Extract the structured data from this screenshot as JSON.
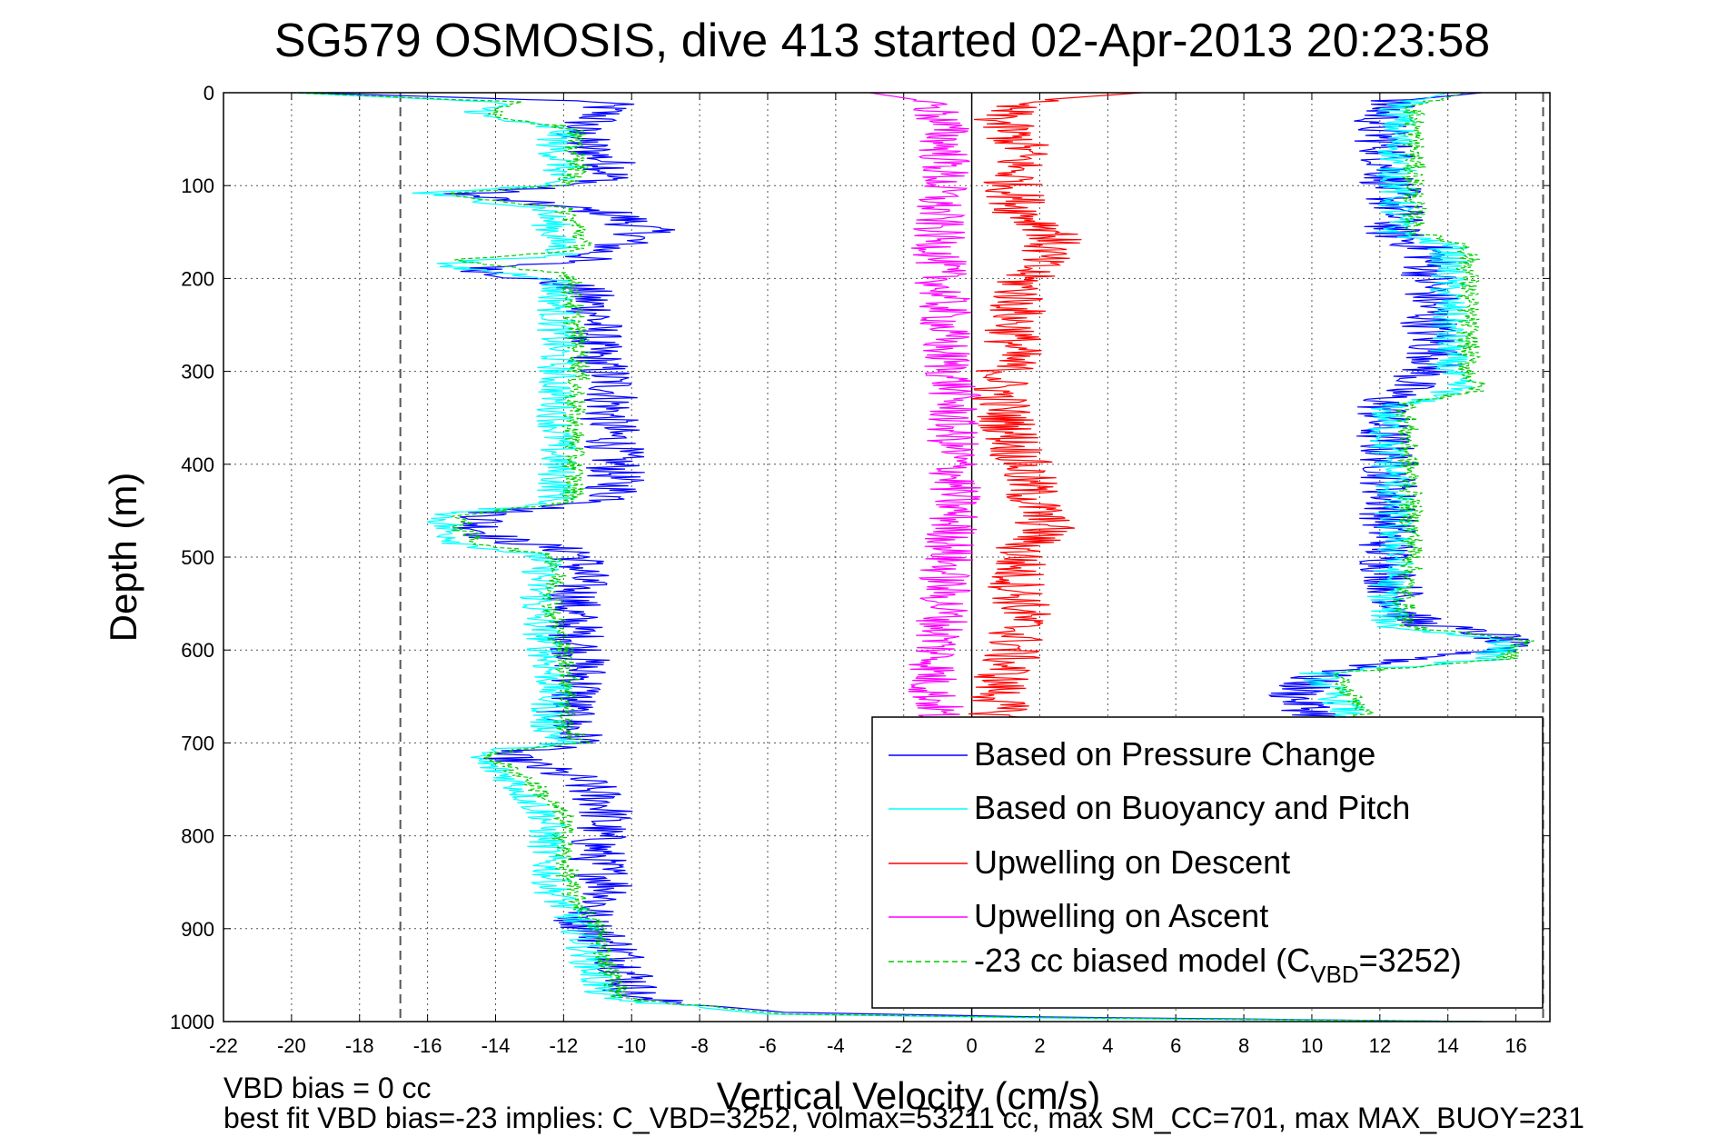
{
  "chart_data": {
    "type": "line",
    "title": "SG579 OSMOSIS, dive 413 started 02-Apr-2013 20:23:58",
    "xlabel": "Vertical Velocity (cm/s)",
    "ylabel": "Depth (m)",
    "xlim": [
      -22,
      17
    ],
    "ylim": [
      0,
      1000
    ],
    "y_reversed": true,
    "grid": true,
    "xticks": [
      -22,
      -20,
      -18,
      -16,
      -14,
      -12,
      -10,
      -8,
      -6,
      -4,
      -2,
      0,
      2,
      4,
      6,
      8,
      10,
      12,
      14,
      16
    ],
    "yticks": [
      0,
      100,
      200,
      300,
      400,
      500,
      600,
      700,
      800,
      900,
      1000
    ],
    "reference_lines": {
      "dashed_x": [
        -16.8,
        16.8
      ],
      "solid_x": [
        0
      ]
    },
    "legend_position": "lower-right",
    "series": [
      {
        "name": "Based on Pressure Change",
        "color": "#0000ff",
        "style": "solid",
        "segments": [
          {
            "depth": [
              0,
              10,
              25,
              40,
              60,
              80,
              95,
              110,
              130,
              150,
              165,
              180,
              190,
              210,
              240,
              270,
              290,
              320,
              350,
              380,
              410,
              440,
              452,
              465,
              480,
              495,
              520,
              560,
              600,
              640,
              670,
              700,
              712,
              740,
              770,
              800,
              830,
              860,
              890,
              920,
              950,
              975,
              990,
              995,
              1000
            ],
            "velocity": [
              -19.5,
              -10.8,
              -10.9,
              -11.7,
              -11.3,
              -10.5,
              -10.8,
              -15,
              -10.5,
              -9.5,
              -10.5,
              -11.5,
              -14.5,
              -11.5,
              -11,
              -11.2,
              -11,
              -10.5,
              -10.7,
              -10.5,
              -10.5,
              -10.5,
              -14,
              -14.5,
              -14,
              -11.5,
              -11.5,
              -11.8,
              -11.5,
              -11.5,
              -12,
              -11.5,
              -14,
              -11.5,
              -10.7,
              -11,
              -11,
              -10.5,
              -11.5,
              -10.5,
              -10,
              -10,
              -5.5,
              2,
              15
            ]
          },
          {
            "depth": [
              0,
              10,
              40,
              70,
              100,
              130,
              150,
              170,
              200,
              230,
              260,
              290,
              310,
              330,
              360,
              400,
              450,
              500,
              540,
              570,
              585,
              600,
              612,
              630,
              650,
              665,
              675
            ],
            "velocity": [
              15,
              12.2,
              12,
              12.3,
              12.3,
              12.5,
              12.3,
              13.5,
              13.5,
              13.5,
              13.5,
              13.7,
              13,
              12.2,
              12,
              12.3,
              12.3,
              12.2,
              12.5,
              13,
              15.5,
              15.5,
              12.5,
              10,
              9.5,
              10,
              10.5
            ]
          }
        ]
      },
      {
        "name": "Based on Buoyancy and Pitch",
        "color": "#00ffff",
        "style": "solid",
        "segments": [
          {
            "depth": [
              0,
              10,
              25,
              40,
              55,
              80,
              100,
              108,
              125,
              150,
              175,
              185,
              200,
              240,
              290,
              340,
              400,
              440,
              455,
              470,
              485,
              500,
              560,
              600,
              640,
              680,
              700,
              712,
              740,
              780,
              820,
              860,
              900,
              940,
              975,
              992,
              996,
              1000
            ],
            "velocity": [
              -20,
              -14,
              -14.5,
              -12,
              -12.3,
              -12,
              -12.5,
              -16.2,
              -12.5,
              -12.3,
              -12,
              -16,
              -12.2,
              -12.2,
              -12.2,
              -12.2,
              -12.2,
              -12.2,
              -15.5,
              -15.5,
              -15,
              -12.6,
              -12.8,
              -12.5,
              -12.3,
              -12.5,
              -12,
              -14.8,
              -13.5,
              -12.5,
              -12.5,
              -12.3,
              -11.5,
              -11.2,
              -10.8,
              -6,
              2,
              15
            ]
          },
          {
            "depth": [
              0,
              15,
              40,
              80,
              120,
              150,
              165,
              200,
              250,
              300,
              320,
              340,
              380,
              420,
              460,
              500,
              540,
              575,
              590,
              610,
              625,
              645,
              660,
              675
            ],
            "velocity": [
              14,
              12.5,
              12.5,
              12.5,
              12.5,
              12.4,
              14,
              14,
              14,
              14,
              14.3,
              12.2,
              12.2,
              12.4,
              12.4,
              12.5,
              12.2,
              12.3,
              15.8,
              15.2,
              10.2,
              10.5,
              11,
              11
            ]
          }
        ]
      },
      {
        "name": "Upwelling on Descent",
        "color": "#ff0000",
        "style": "solid",
        "segments": [
          {
            "depth": [
              0,
              10,
              30,
              60,
              100,
              130,
              150,
              170,
              200,
              240,
              280,
              320,
              350,
              400,
              440,
              470,
              490,
              520,
              560,
              600,
              640,
              665,
              675
            ],
            "velocity": [
              5,
              1.2,
              0.8,
              1.5,
              1.2,
              1.5,
              2.5,
              2.2,
              1.5,
              1.3,
              1.2,
              0.8,
              1,
              1.5,
              1.8,
              2.2,
              1.5,
              1.3,
              1.5,
              1.2,
              0.8,
              0.8,
              0.8
            ]
          }
        ]
      },
      {
        "name": "Upwelling on Ascent",
        "color": "#ff00ff",
        "style": "solid",
        "segments": [
          {
            "depth": [
              0,
              10,
              40,
              80,
              120,
              160,
              200,
              240,
              280,
              320,
              360,
              400,
              440,
              480,
              520,
              560,
              600,
              640,
              660,
              675
            ],
            "velocity": [
              -3,
              -1.2,
              -0.8,
              -0.8,
              -1,
              -1,
              -0.9,
              -0.8,
              -0.8,
              -0.5,
              -0.6,
              -0.5,
              -0.5,
              -0.6,
              -0.8,
              -0.8,
              -1,
              -1.2,
              -1,
              -1
            ]
          }
        ]
      },
      {
        "name": "-23 cc biased model (C_VBD=3252)",
        "color": "#00cc00",
        "style": "dashed",
        "segments": [
          {
            "depth": [
              0,
              10,
              25,
              40,
              55,
              80,
              100,
              108,
              125,
              150,
              170,
              180,
              195,
              240,
              290,
              340,
              400,
              440,
              455,
              470,
              485,
              500,
              560,
              600,
              640,
              680,
              700,
              712,
              740,
              780,
              820,
              860,
              900,
              940,
              975,
              992,
              996,
              1000
            ],
            "velocity": [
              -20,
              -13.5,
              -14,
              -11.5,
              -11.8,
              -11.5,
              -12,
              -15.6,
              -12,
              -11.5,
              -11.5,
              -15.5,
              -11.8,
              -11.7,
              -11.5,
              -11.7,
              -11.7,
              -11.7,
              -15,
              -15,
              -14.5,
              -12.2,
              -12.3,
              -12,
              -11.8,
              -12,
              -11.5,
              -14.3,
              -13,
              -12,
              -12,
              -11.8,
              -11,
              -10.7,
              -10.3,
              -5.5,
              3,
              15
            ]
          },
          {
            "depth": [
              0,
              15,
              40,
              80,
              120,
              150,
              165,
              200,
              250,
              300,
              320,
              335,
              380,
              420,
              460,
              500,
              540,
              575,
              590,
              610,
              625,
              645,
              660,
              675
            ],
            "velocity": [
              14.5,
              13,
              13,
              13,
              13,
              13,
              14.6,
              14.6,
              14.6,
              14.6,
              14.9,
              12.8,
              12.8,
              12.9,
              12.9,
              13,
              12.7,
              12.8,
              16.3,
              15.7,
              10.7,
              11,
              11.5,
              11.5
            ]
          }
        ]
      }
    ],
    "legend": [
      {
        "label": "Based on Pressure Change",
        "color": "#0000ff",
        "style": "solid"
      },
      {
        "label": "Based on Buoyancy and Pitch",
        "color": "#00ffff",
        "style": "solid"
      },
      {
        "label": "Upwelling on Descent",
        "color": "#ff0000",
        "style": "solid"
      },
      {
        "label": "Upwelling on Ascent",
        "color": "#ff00ff",
        "style": "solid"
      },
      {
        "label": "-23 cc biased model (C",
        "sub": "VBD",
        "after": "=3252)",
        "color": "#00cc00",
        "style": "dashed"
      }
    ]
  },
  "footer": {
    "line1": "VBD bias = 0 cc",
    "line2": "best fit VBD bias=-23 implies: C_VBD=3252, volmax=53211 cc, max SM_CC=701, max MAX_BUOY=231"
  }
}
